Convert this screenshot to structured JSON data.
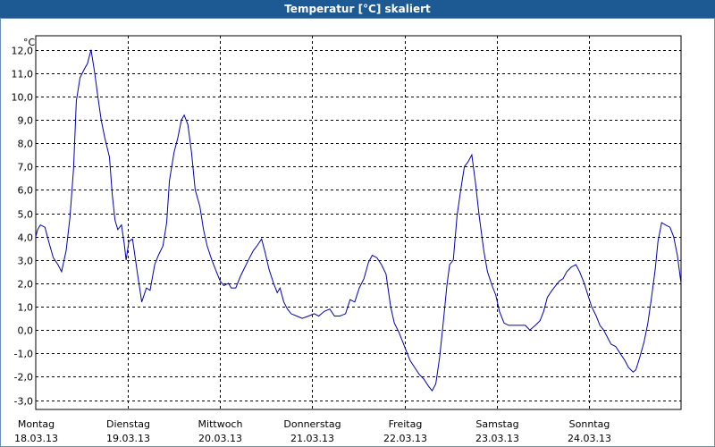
{
  "window": {
    "title": "Temperatur [°C] skaliert"
  },
  "colors": {
    "titlebar": "#1d5a93",
    "line": "#0000b4",
    "grid": "#000000"
  },
  "chart_data": {
    "type": "line",
    "title": "Temperatur [°C] skaliert",
    "ylabel": "°C",
    "xlabel": "",
    "ylim": [
      -3.4,
      12.6
    ],
    "yticks": [
      12,
      11,
      10,
      9,
      8,
      7,
      6,
      5,
      4,
      3,
      2,
      1,
      0,
      -1,
      -2,
      -3
    ],
    "ytick_labels": [
      "12,0",
      "11,0",
      "10,0",
      "9,0",
      "8,0",
      "7,0",
      "6,0",
      "5,0",
      "4,0",
      "3,0",
      "2,0",
      "1,0",
      "0,0",
      "-1,0",
      "-2,0",
      "-3,0"
    ],
    "grid": true,
    "days": [
      {
        "weekday": "Montag",
        "date": "18.03.13"
      },
      {
        "weekday": "Dienstag",
        "date": "19.03.13"
      },
      {
        "weekday": "Mittwoch",
        "date": "20.03.13"
      },
      {
        "weekday": "Donnerstag",
        "date": "21.03.13"
      },
      {
        "weekday": "Freitag",
        "date": "22.03.13"
      },
      {
        "weekday": "Samstag",
        "date": "23.03.13"
      },
      {
        "weekday": "Sonntag",
        "date": "24.03.13"
      }
    ],
    "x_unit": "day",
    "xlim": [
      0,
      7
    ],
    "series": [
      {
        "values": [
          [
            0.0,
            4.0
          ],
          [
            0.02,
            4.3
          ],
          [
            0.05,
            4.5
          ],
          [
            0.1,
            4.4
          ],
          [
            0.14,
            3.8
          ],
          [
            0.19,
            3.1
          ],
          [
            0.24,
            2.8
          ],
          [
            0.28,
            2.5
          ],
          [
            0.33,
            3.4
          ],
          [
            0.37,
            4.8
          ],
          [
            0.41,
            6.9
          ],
          [
            0.44,
            9.8
          ],
          [
            0.48,
            10.8
          ],
          [
            0.53,
            11.2
          ],
          [
            0.56,
            11.4
          ],
          [
            0.6,
            12.0
          ],
          [
            0.64,
            11.0
          ],
          [
            0.67,
            10.1
          ],
          [
            0.71,
            9.0
          ],
          [
            0.75,
            8.2
          ],
          [
            0.8,
            7.4
          ],
          [
            0.83,
            5.8
          ],
          [
            0.86,
            4.7
          ],
          [
            0.89,
            4.3
          ],
          [
            0.93,
            4.5
          ],
          [
            0.96,
            3.7
          ],
          [
            0.98,
            3.0
          ],
          [
            1.01,
            3.8
          ],
          [
            1.05,
            3.9
          ],
          [
            1.1,
            2.5
          ],
          [
            1.15,
            1.2
          ],
          [
            1.2,
            1.8
          ],
          [
            1.24,
            1.7
          ],
          [
            1.29,
            2.8
          ],
          [
            1.33,
            3.2
          ],
          [
            1.38,
            3.6
          ],
          [
            1.42,
            4.6
          ],
          [
            1.45,
            6.4
          ],
          [
            1.5,
            7.6
          ],
          [
            1.54,
            8.2
          ],
          [
            1.58,
            9.0
          ],
          [
            1.61,
            9.2
          ],
          [
            1.65,
            8.8
          ],
          [
            1.69,
            7.6
          ],
          [
            1.73,
            6.0
          ],
          [
            1.78,
            5.3
          ],
          [
            1.82,
            4.3
          ],
          [
            1.86,
            3.6
          ],
          [
            1.91,
            3.0
          ],
          [
            1.95,
            2.6
          ],
          [
            2.0,
            2.1
          ],
          [
            2.04,
            1.9
          ],
          [
            2.09,
            2.0
          ],
          [
            2.12,
            1.8
          ],
          [
            2.17,
            1.8
          ],
          [
            2.22,
            2.3
          ],
          [
            2.27,
            2.7
          ],
          [
            2.32,
            3.1
          ],
          [
            2.36,
            3.4
          ],
          [
            2.4,
            3.6
          ],
          [
            2.45,
            3.9
          ],
          [
            2.49,
            3.3
          ],
          [
            2.53,
            2.6
          ],
          [
            2.58,
            2.0
          ],
          [
            2.62,
            1.6
          ],
          [
            2.65,
            1.8
          ],
          [
            2.69,
            1.2
          ],
          [
            2.73,
            0.9
          ],
          [
            2.77,
            0.7
          ],
          [
            2.83,
            0.6
          ],
          [
            2.89,
            0.5
          ],
          [
            2.96,
            0.6
          ],
          [
            3.02,
            0.7
          ],
          [
            3.07,
            0.6
          ],
          [
            3.13,
            0.8
          ],
          [
            3.19,
            0.9
          ],
          [
            3.24,
            0.6
          ],
          [
            3.3,
            0.6
          ],
          [
            3.36,
            0.7
          ],
          [
            3.41,
            1.3
          ],
          [
            3.46,
            1.2
          ],
          [
            3.51,
            1.8
          ],
          [
            3.56,
            2.2
          ],
          [
            3.61,
            2.9
          ],
          [
            3.65,
            3.2
          ],
          [
            3.7,
            3.1
          ],
          [
            3.75,
            2.8
          ],
          [
            3.8,
            2.4
          ],
          [
            3.85,
            1.0
          ],
          [
            3.89,
            0.3
          ],
          [
            3.94,
            -0.1
          ],
          [
            3.98,
            -0.5
          ],
          [
            4.02,
            -0.9
          ],
          [
            4.06,
            -1.3
          ],
          [
            4.11,
            -1.6
          ],
          [
            4.16,
            -1.9
          ],
          [
            4.21,
            -2.1
          ],
          [
            4.26,
            -2.4
          ],
          [
            4.3,
            -2.6
          ],
          [
            4.34,
            -2.3
          ],
          [
            4.38,
            -1.2
          ],
          [
            4.42,
            0.3
          ],
          [
            4.46,
            1.9
          ],
          [
            4.49,
            2.8
          ],
          [
            4.53,
            3.0
          ],
          [
            4.57,
            4.9
          ],
          [
            4.61,
            6.0
          ],
          [
            4.65,
            7.0
          ],
          [
            4.69,
            7.2
          ],
          [
            4.73,
            7.5
          ],
          [
            4.77,
            6.3
          ],
          [
            4.81,
            4.9
          ],
          [
            4.86,
            3.4
          ],
          [
            4.9,
            2.5
          ],
          [
            4.95,
            1.9
          ],
          [
            4.99,
            1.5
          ],
          [
            5.03,
            0.8
          ],
          [
            5.08,
            0.3
          ],
          [
            5.13,
            0.2
          ],
          [
            5.19,
            0.2
          ],
          [
            5.25,
            0.2
          ],
          [
            5.31,
            0.2
          ],
          [
            5.36,
            0.0
          ],
          [
            5.42,
            0.2
          ],
          [
            5.47,
            0.4
          ],
          [
            5.51,
            0.8
          ],
          [
            5.55,
            1.4
          ],
          [
            5.6,
            1.7
          ],
          [
            5.64,
            1.9
          ],
          [
            5.68,
            2.1
          ],
          [
            5.72,
            2.2
          ],
          [
            5.76,
            2.5
          ],
          [
            5.81,
            2.7
          ],
          [
            5.86,
            2.8
          ],
          [
            5.9,
            2.5
          ],
          [
            5.95,
            2.0
          ],
          [
            5.99,
            1.5
          ],
          [
            6.03,
            1.0
          ],
          [
            6.08,
            0.6
          ],
          [
            6.12,
            0.2
          ],
          [
            6.16,
            0.0
          ],
          [
            6.2,
            -0.3
          ],
          [
            6.24,
            -0.6
          ],
          [
            6.29,
            -0.7
          ],
          [
            6.34,
            -1.0
          ],
          [
            6.39,
            -1.3
          ],
          [
            6.43,
            -1.6
          ],
          [
            6.48,
            -1.8
          ],
          [
            6.51,
            -1.7
          ],
          [
            6.55,
            -1.2
          ],
          [
            6.6,
            -0.5
          ],
          [
            6.64,
            0.3
          ],
          [
            6.68,
            1.4
          ],
          [
            6.72,
            2.6
          ],
          [
            6.75,
            3.8
          ],
          [
            6.79,
            4.6
          ],
          [
            6.83,
            4.5
          ],
          [
            6.88,
            4.4
          ],
          [
            6.92,
            4.0
          ],
          [
            6.96,
            3.2
          ],
          [
            7.0,
            2.0
          ]
        ]
      }
    ]
  }
}
